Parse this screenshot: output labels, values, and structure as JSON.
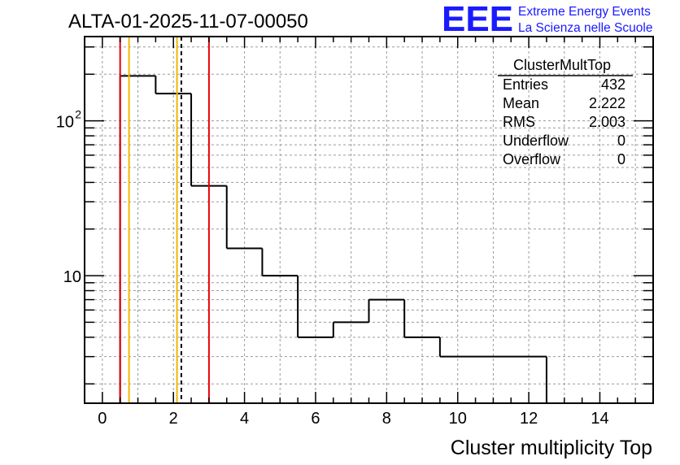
{
  "header": {
    "title": "ALTA-01-2025-11-07-00050"
  },
  "logo": {
    "mark": "EEE",
    "line1": "Extreme Energy Events",
    "line2": "La Scienza nelle Scuole",
    "color": "#1a1aff"
  },
  "stats": {
    "name": "ClusterMultTop",
    "rows": [
      {
        "label": "Entries",
        "value": "432"
      },
      {
        "label": "Mean",
        "value": "2.222"
      },
      {
        "label": "RMS",
        "value": "2.003"
      },
      {
        "label": "Underflow",
        "value": "0"
      },
      {
        "label": "Overflow",
        "value": "0"
      }
    ]
  },
  "chart_data": {
    "type": "bar",
    "histogram": true,
    "xlabel": "Cluster multiplicity Top",
    "ylabel": "",
    "xlim": [
      -0.5,
      15.5
    ],
    "ylim": [
      1.5,
      350
    ],
    "yscale": "log",
    "grid": true,
    "x_ticks": [
      {
        "v": 0,
        "label": "0"
      },
      {
        "v": 2,
        "label": "2"
      },
      {
        "v": 4,
        "label": "4"
      },
      {
        "v": 6,
        "label": "6"
      },
      {
        "v": 8,
        "label": "8"
      },
      {
        "v": 10,
        "label": "10"
      },
      {
        "v": 12,
        "label": "12"
      },
      {
        "v": 14,
        "label": "14"
      }
    ],
    "y_ticks": [
      {
        "v": 10,
        "label": "10"
      },
      {
        "v": 100,
        "label": "10",
        "sup": "2"
      }
    ],
    "bins": [
      {
        "lo": 0.5,
        "hi": 1.5,
        "value": 195
      },
      {
        "lo": 1.5,
        "hi": 2.5,
        "value": 150
      },
      {
        "lo": 2.5,
        "hi": 3.5,
        "value": 38
      },
      {
        "lo": 3.5,
        "hi": 4.5,
        "value": 15
      },
      {
        "lo": 4.5,
        "hi": 5.5,
        "value": 10
      },
      {
        "lo": 5.5,
        "hi": 6.5,
        "value": 4
      },
      {
        "lo": 6.5,
        "hi": 7.5,
        "value": 5
      },
      {
        "lo": 7.5,
        "hi": 8.5,
        "value": 7
      },
      {
        "lo": 8.5,
        "hi": 9.5,
        "value": 4
      },
      {
        "lo": 9.5,
        "hi": 12.5,
        "value": 3
      }
    ],
    "markers": [
      {
        "x": 0.5,
        "color": "#e8000b",
        "style": "solid"
      },
      {
        "x": 3.0,
        "color": "#e8000b",
        "style": "solid"
      },
      {
        "x": 0.75,
        "color": "#f2b600",
        "style": "solid"
      },
      {
        "x": 2.1,
        "color": "#f2b600",
        "style": "solid"
      },
      {
        "x": 2.222,
        "color": "#000000",
        "style": "dashed"
      }
    ]
  }
}
